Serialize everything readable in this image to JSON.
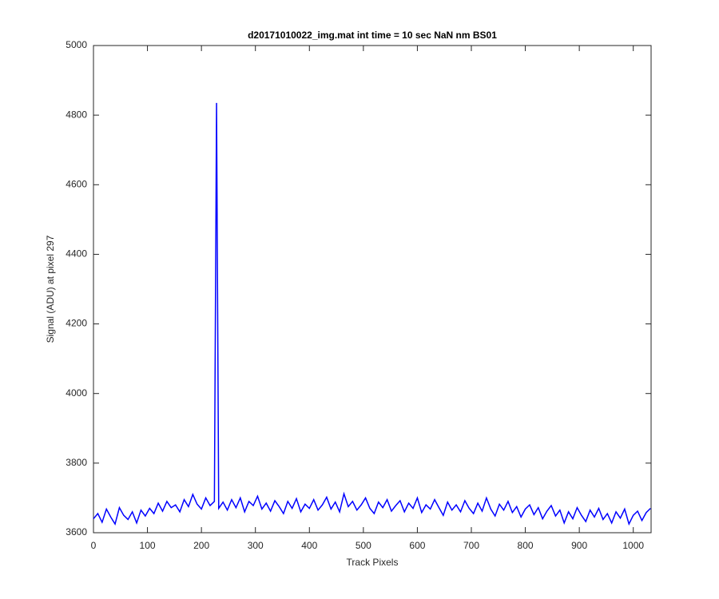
{
  "chart_data": {
    "type": "line",
    "title": "d20171010022_img.mat int time = 10 sec  NaN nm BS01",
    "x_label": "Track Pixels",
    "y_label": "Signal (ADU) at pixel 297",
    "x": [
      0,
      8,
      16,
      24,
      32,
      40,
      48,
      56,
      64,
      72,
      80,
      88,
      96,
      104,
      112,
      120,
      128,
      136,
      144,
      152,
      160,
      168,
      176,
      184,
      192,
      200,
      208,
      216,
      224,
      228,
      232,
      240,
      248,
      256,
      264,
      272,
      280,
      288,
      296,
      304,
      312,
      320,
      328,
      336,
      344,
      352,
      360,
      368,
      376,
      384,
      392,
      400,
      408,
      416,
      424,
      432,
      440,
      448,
      456,
      464,
      472,
      480,
      488,
      496,
      504,
      512,
      520,
      528,
      536,
      544,
      552,
      560,
      568,
      576,
      584,
      592,
      600,
      608,
      616,
      624,
      632,
      640,
      648,
      656,
      664,
      672,
      680,
      688,
      696,
      704,
      712,
      720,
      728,
      736,
      744,
      752,
      760,
      768,
      776,
      784,
      792,
      800,
      808,
      816,
      824,
      832,
      840,
      848,
      856,
      864,
      872,
      880,
      888,
      896,
      904,
      912,
      920,
      928,
      936,
      944,
      952,
      960,
      968,
      976,
      984,
      992,
      1000,
      1008,
      1016,
      1024,
      1032
    ],
    "series": [
      {
        "color": "#0000ff",
        "values": [
          3640,
          3655,
          3630,
          3668,
          3645,
          3625,
          3672,
          3650,
          3638,
          3660,
          3628,
          3665,
          3648,
          3670,
          3655,
          3685,
          3662,
          3690,
          3672,
          3680,
          3660,
          3695,
          3675,
          3710,
          3682,
          3668,
          3700,
          3678,
          3690,
          4835,
          3670,
          3688,
          3665,
          3695,
          3672,
          3700,
          3660,
          3690,
          3678,
          3705,
          3668,
          3685,
          3662,
          3692,
          3675,
          3655,
          3690,
          3670,
          3698,
          3660,
          3682,
          3670,
          3695,
          3665,
          3680,
          3702,
          3668,
          3688,
          3660,
          3712,
          3675,
          3690,
          3665,
          3680,
          3700,
          3670,
          3655,
          3688,
          3672,
          3695,
          3662,
          3678,
          3692,
          3660,
          3685,
          3670,
          3700,
          3658,
          3680,
          3668,
          3695,
          3672,
          3650,
          3688,
          3665,
          3680,
          3660,
          3692,
          3670,
          3655,
          3685,
          3662,
          3700,
          3668,
          3648,
          3682,
          3665,
          3690,
          3658,
          3675,
          3645,
          3668,
          3680,
          3652,
          3672,
          3640,
          3662,
          3678,
          3648,
          3665,
          3628,
          3660,
          3640,
          3672,
          3650,
          3632,
          3665,
          3645,
          3670,
          3638,
          3655,
          3628,
          3660,
          3642,
          3668,
          3625,
          3650,
          3662,
          3635,
          3658,
          3670
        ]
      }
    ],
    "xlim": [
      0,
      1033
    ],
    "ylim": [
      3600,
      5000
    ],
    "xticks": [
      0,
      100,
      200,
      300,
      400,
      500,
      600,
      700,
      800,
      900,
      1000
    ],
    "yticks": [
      3600,
      3800,
      4000,
      4200,
      4400,
      4600,
      4800,
      5000
    ]
  }
}
